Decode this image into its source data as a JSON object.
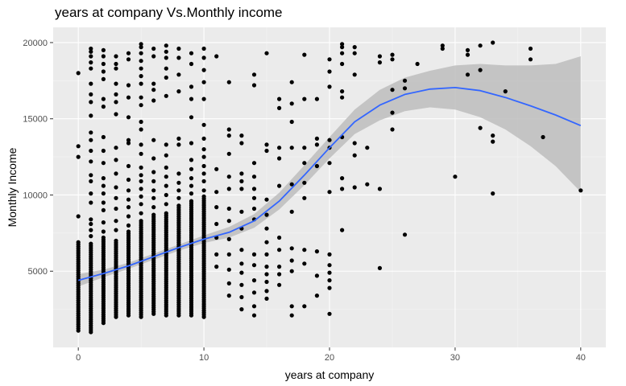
{
  "chart_data": {
    "type": "scatter",
    "title": "years at company Vs.Monthly income",
    "xlabel": "years at company",
    "ylabel": "Monthly Income",
    "xlim": [
      -2,
      42
    ],
    "ylim": [
      0,
      21000
    ],
    "xticks": [
      0,
      10,
      20,
      30,
      40
    ],
    "yticks": [
      5000,
      10000,
      15000,
      20000
    ],
    "grid": true,
    "background": "#ebebeb",
    "point_color": "#000000",
    "smooth_color": "#3366ff",
    "ribbon_color": "#bdbdbd",
    "columns": [
      {
        "x": 0,
        "min": 1100,
        "max": 6900,
        "extras": [
          8600,
          12500,
          13200,
          18000
        ]
      },
      {
        "x": 1,
        "min": 1000,
        "max": 6800,
        "extras": [
          7300,
          7700,
          8100,
          8400,
          9500,
          10100,
          10900,
          11300,
          12200,
          12900,
          13600,
          14100,
          15200,
          16100,
          16600,
          17300,
          18300,
          18700,
          19100,
          19400,
          19600
        ]
      },
      {
        "x": 2,
        "min": 1600,
        "max": 7200,
        "extras": [
          7600,
          8200,
          9000,
          9500,
          10100,
          10600,
          11100,
          12100,
          12900,
          13800,
          15800,
          16300,
          17600,
          18100,
          18600,
          19100,
          19500
        ]
      },
      {
        "x": 3,
        "min": 2000,
        "max": 7000,
        "extras": [
          7700,
          8300,
          9100,
          9800,
          10500,
          11400,
          12300,
          13100,
          15300,
          16100,
          16600,
          17300,
          18300,
          18600,
          19100
        ]
      },
      {
        "x": 4,
        "min": 2100,
        "max": 7600,
        "extras": [
          8000,
          8600,
          9200,
          9700,
          10300,
          11000,
          11900,
          13400,
          13600,
          15100,
          16400,
          17200,
          18900,
          19300
        ]
      },
      {
        "x": 5,
        "min": 2000,
        "max": 8300,
        "extras": [
          8800,
          9400,
          9900,
          10400,
          10900,
          11300,
          11800,
          12700,
          13300,
          14300,
          14800,
          15900,
          16400,
          17300,
          17800,
          18300,
          18800,
          19300,
          19700,
          19900
        ]
      },
      {
        "x": 6,
        "min": 2200,
        "max": 8700,
        "extras": [
          9200,
          9800,
          10300,
          10900,
          11500,
          12400,
          13600,
          16200,
          16900,
          17300,
          19100,
          19600
        ]
      },
      {
        "x": 7,
        "min": 2100,
        "max": 8800,
        "extras": [
          9400,
          10000,
          10600,
          11200,
          11800,
          12600,
          13300,
          16500,
          17700,
          18300,
          19000,
          19400,
          19800
        ]
      },
      {
        "x": 8,
        "min": 2100,
        "max": 9300,
        "extras": [
          9800,
          10300,
          10800,
          11400,
          13300,
          13700,
          16800,
          17900,
          19000,
          19600
        ]
      },
      {
        "x": 9,
        "min": 2100,
        "max": 9600,
        "extras": [
          10100,
          10600,
          11100,
          11700,
          12300,
          13400,
          15100,
          16300,
          17100,
          18600,
          19300
        ]
      },
      {
        "x": 10,
        "min": 2000,
        "max": 9900,
        "extras": [
          10300,
          10900,
          11400,
          11900,
          12500,
          13000,
          13700,
          14600,
          16300,
          17400,
          18200,
          19000,
          19600
        ]
      }
    ],
    "points": [
      {
        "x": 11,
        "y": 5300
      },
      {
        "x": 11,
        "y": 6100
      },
      {
        "x": 11,
        "y": 7200
      },
      {
        "x": 11,
        "y": 8100
      },
      {
        "x": 11,
        "y": 9200
      },
      {
        "x": 11,
        "y": 10200
      },
      {
        "x": 11,
        "y": 11700
      },
      {
        "x": 11,
        "y": 19100
      },
      {
        "x": 12,
        "y": 3400
      },
      {
        "x": 12,
        "y": 4200
      },
      {
        "x": 12,
        "y": 5100
      },
      {
        "x": 12,
        "y": 6100
      },
      {
        "x": 12,
        "y": 7100
      },
      {
        "x": 12,
        "y": 8300
      },
      {
        "x": 12,
        "y": 9100
      },
      {
        "x": 12,
        "y": 10400
      },
      {
        "x": 12,
        "y": 11200
      },
      {
        "x": 12,
        "y": 12700
      },
      {
        "x": 12,
        "y": 13900
      },
      {
        "x": 12,
        "y": 14300
      },
      {
        "x": 12,
        "y": 17400
      },
      {
        "x": 13,
        "y": 2500
      },
      {
        "x": 13,
        "y": 3300
      },
      {
        "x": 13,
        "y": 4100
      },
      {
        "x": 13,
        "y": 4900
      },
      {
        "x": 13,
        "y": 5500
      },
      {
        "x": 13,
        "y": 6400
      },
      {
        "x": 13,
        "y": 7800
      },
      {
        "x": 13,
        "y": 8900
      },
      {
        "x": 13,
        "y": 10400
      },
      {
        "x": 13,
        "y": 10900
      },
      {
        "x": 13,
        "y": 11400
      },
      {
        "x": 13,
        "y": 13400
      },
      {
        "x": 13,
        "y": 13900
      },
      {
        "x": 14,
        "y": 2100
      },
      {
        "x": 14,
        "y": 2700
      },
      {
        "x": 14,
        "y": 3600
      },
      {
        "x": 14,
        "y": 4400
      },
      {
        "x": 14,
        "y": 5400
      },
      {
        "x": 14,
        "y": 6100
      },
      {
        "x": 14,
        "y": 8400
      },
      {
        "x": 14,
        "y": 9100
      },
      {
        "x": 14,
        "y": 9800
      },
      {
        "x": 14,
        "y": 10400
      },
      {
        "x": 14,
        "y": 11200
      },
      {
        "x": 14,
        "y": 12100
      },
      {
        "x": 14,
        "y": 17200
      },
      {
        "x": 14,
        "y": 17900
      },
      {
        "x": 15,
        "y": 3200
      },
      {
        "x": 15,
        "y": 3700
      },
      {
        "x": 15,
        "y": 4300
      },
      {
        "x": 15,
        "y": 4800
      },
      {
        "x": 15,
        "y": 5300
      },
      {
        "x": 15,
        "y": 6100
      },
      {
        "x": 15,
        "y": 6900
      },
      {
        "x": 15,
        "y": 7800
      },
      {
        "x": 15,
        "y": 8700
      },
      {
        "x": 15,
        "y": 9700
      },
      {
        "x": 15,
        "y": 12900
      },
      {
        "x": 15,
        "y": 13300
      },
      {
        "x": 15,
        "y": 19300
      },
      {
        "x": 16,
        "y": 4100
      },
      {
        "x": 16,
        "y": 4800
      },
      {
        "x": 16,
        "y": 5300
      },
      {
        "x": 16,
        "y": 6400
      },
      {
        "x": 16,
        "y": 7200
      },
      {
        "x": 16,
        "y": 10600
      },
      {
        "x": 16,
        "y": 12400
      },
      {
        "x": 16,
        "y": 13100
      },
      {
        "x": 16,
        "y": 15700
      },
      {
        "x": 16,
        "y": 16300
      },
      {
        "x": 17,
        "y": 2100
      },
      {
        "x": 17,
        "y": 2700
      },
      {
        "x": 17,
        "y": 5000
      },
      {
        "x": 17,
        "y": 5700
      },
      {
        "x": 17,
        "y": 6500
      },
      {
        "x": 17,
        "y": 8900
      },
      {
        "x": 17,
        "y": 10700
      },
      {
        "x": 17,
        "y": 13100
      },
      {
        "x": 17,
        "y": 14800
      },
      {
        "x": 17,
        "y": 16000
      },
      {
        "x": 17,
        "y": 17400
      },
      {
        "x": 18,
        "y": 2700
      },
      {
        "x": 18,
        "y": 5500
      },
      {
        "x": 18,
        "y": 6400
      },
      {
        "x": 18,
        "y": 9800
      },
      {
        "x": 18,
        "y": 10800
      },
      {
        "x": 18,
        "y": 12100
      },
      {
        "x": 18,
        "y": 13100
      },
      {
        "x": 18,
        "y": 16300
      },
      {
        "x": 18,
        "y": 19200
      },
      {
        "x": 19,
        "y": 3400
      },
      {
        "x": 19,
        "y": 4700
      },
      {
        "x": 19,
        "y": 6300
      },
      {
        "x": 19,
        "y": 11900
      },
      {
        "x": 19,
        "y": 13300
      },
      {
        "x": 19,
        "y": 13700
      },
      {
        "x": 19,
        "y": 16300
      },
      {
        "x": 20,
        "y": 2200
      },
      {
        "x": 20,
        "y": 3900
      },
      {
        "x": 20,
        "y": 4400
      },
      {
        "x": 20,
        "y": 4900
      },
      {
        "x": 20,
        "y": 5400
      },
      {
        "x": 20,
        "y": 6100
      },
      {
        "x": 20,
        "y": 10200
      },
      {
        "x": 20,
        "y": 12100
      },
      {
        "x": 20,
        "y": 13100
      },
      {
        "x": 20,
        "y": 13600
      },
      {
        "x": 20,
        "y": 17100
      },
      {
        "x": 20,
        "y": 18100
      },
      {
        "x": 20,
        "y": 18900
      },
      {
        "x": 21,
        "y": 7700
      },
      {
        "x": 21,
        "y": 10400
      },
      {
        "x": 21,
        "y": 11100
      },
      {
        "x": 21,
        "y": 13800
      },
      {
        "x": 21,
        "y": 16400
      },
      {
        "x": 21,
        "y": 16800
      },
      {
        "x": 21,
        "y": 18600
      },
      {
        "x": 21,
        "y": 19300
      },
      {
        "x": 21,
        "y": 19700
      },
      {
        "x": 21,
        "y": 19900
      },
      {
        "x": 22,
        "y": 10500
      },
      {
        "x": 22,
        "y": 12600
      },
      {
        "x": 22,
        "y": 13400
      },
      {
        "x": 22,
        "y": 17900
      },
      {
        "x": 22,
        "y": 19300
      },
      {
        "x": 22,
        "y": 19700
      },
      {
        "x": 23,
        "y": 10700
      },
      {
        "x": 23,
        "y": 13100
      },
      {
        "x": 24,
        "y": 5200
      },
      {
        "x": 24,
        "y": 10400
      },
      {
        "x": 24,
        "y": 18700
      },
      {
        "x": 24,
        "y": 19100
      },
      {
        "x": 25,
        "y": 14300
      },
      {
        "x": 25,
        "y": 15400
      },
      {
        "x": 25,
        "y": 16900
      },
      {
        "x": 25,
        "y": 18900
      },
      {
        "x": 25,
        "y": 19200
      },
      {
        "x": 26,
        "y": 7400
      },
      {
        "x": 26,
        "y": 17000
      },
      {
        "x": 26,
        "y": 17500
      },
      {
        "x": 27,
        "y": 18600
      },
      {
        "x": 29,
        "y": 19600
      },
      {
        "x": 29,
        "y": 19800
      },
      {
        "x": 30,
        "y": 11200
      },
      {
        "x": 31,
        "y": 17900
      },
      {
        "x": 31,
        "y": 19200
      },
      {
        "x": 31,
        "y": 19500
      },
      {
        "x": 32,
        "y": 14400
      },
      {
        "x": 32,
        "y": 18200
      },
      {
        "x": 32,
        "y": 19800
      },
      {
        "x": 33,
        "y": 10100
      },
      {
        "x": 33,
        "y": 13500
      },
      {
        "x": 33,
        "y": 13900
      },
      {
        "x": 33,
        "y": 20000
      },
      {
        "x": 34,
        "y": 16800
      },
      {
        "x": 36,
        "y": 18900
      },
      {
        "x": 36,
        "y": 19600
      },
      {
        "x": 37,
        "y": 13800
      },
      {
        "x": 40,
        "y": 10300
      }
    ],
    "smooth": [
      {
        "x": 0,
        "y": 4400,
        "lo": 4000,
        "hi": 4800
      },
      {
        "x": 2,
        "y": 4850,
        "lo": 4600,
        "hi": 5100
      },
      {
        "x": 4,
        "y": 5350,
        "lo": 5150,
        "hi": 5550
      },
      {
        "x": 6,
        "y": 5950,
        "lo": 5750,
        "hi": 6150
      },
      {
        "x": 8,
        "y": 6550,
        "lo": 6350,
        "hi": 6750
      },
      {
        "x": 10,
        "y": 7100,
        "lo": 6850,
        "hi": 7350
      },
      {
        "x": 12,
        "y": 7550,
        "lo": 7200,
        "hi": 7900
      },
      {
        "x": 14,
        "y": 8300,
        "lo": 7850,
        "hi": 8750
      },
      {
        "x": 16,
        "y": 9600,
        "lo": 9050,
        "hi": 10150
      },
      {
        "x": 18,
        "y": 11300,
        "lo": 10650,
        "hi": 11950
      },
      {
        "x": 20,
        "y": 13100,
        "lo": 12400,
        "hi": 13800
      },
      {
        "x": 22,
        "y": 14800,
        "lo": 14000,
        "hi": 15600
      },
      {
        "x": 24,
        "y": 15900,
        "lo": 14900,
        "hi": 16900
      },
      {
        "x": 26,
        "y": 16600,
        "lo": 15500,
        "hi": 17700
      },
      {
        "x": 28,
        "y": 16950,
        "lo": 15750,
        "hi": 18150
      },
      {
        "x": 30,
        "y": 17050,
        "lo": 15600,
        "hi": 18500
      },
      {
        "x": 32,
        "y": 16850,
        "lo": 15100,
        "hi": 18600
      },
      {
        "x": 34,
        "y": 16400,
        "lo": 14300,
        "hi": 18500
      },
      {
        "x": 36,
        "y": 15850,
        "lo": 13200,
        "hi": 18500
      },
      {
        "x": 38,
        "y": 15250,
        "lo": 11900,
        "hi": 18600
      },
      {
        "x": 40,
        "y": 14550,
        "lo": 10200,
        "hi": 19100
      }
    ]
  }
}
